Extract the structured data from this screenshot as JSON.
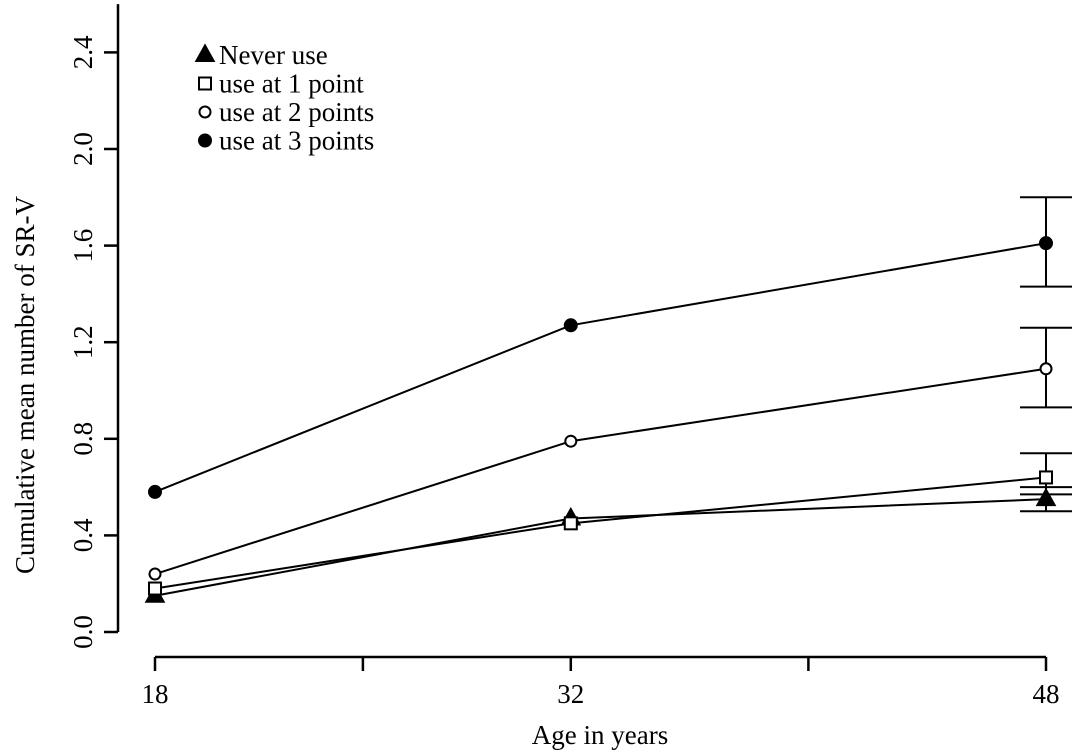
{
  "chart_data": {
    "type": "line",
    "xlabel": "Age in years",
    "ylabel": "Cumulative mean number of SR-V",
    "x": [
      18,
      32,
      48
    ],
    "x_ticks": [
      "18",
      "32",
      "48"
    ],
    "x_minor_ticks": [
      25,
      40
    ],
    "xlim": [
      18,
      48
    ],
    "ylim": [
      0.0,
      2.6
    ],
    "y_ticks": [
      "0.0",
      "0.4",
      "0.8",
      "1.2",
      "1.6",
      "2.0",
      "2.4"
    ],
    "grid": false,
    "legend_position": "top-left",
    "series": [
      {
        "name": "Never use",
        "marker": "filled-triangle",
        "values": [
          0.15,
          0.47,
          0.55
        ],
        "error_48": [
          0.5,
          0.6
        ]
      },
      {
        "name": "use at 1 point",
        "marker": "open-square",
        "values": [
          0.18,
          0.45,
          0.64
        ],
        "error_48": [
          0.57,
          0.74
        ]
      },
      {
        "name": "use at 2 points",
        "marker": "open-circle",
        "values": [
          0.24,
          0.79,
          1.09
        ],
        "error_48": [
          0.93,
          1.26
        ]
      },
      {
        "name": "use at 3 points",
        "marker": "filled-circle",
        "values": [
          0.58,
          1.27,
          1.61
        ],
        "error_48": [
          1.43,
          1.8
        ]
      }
    ]
  }
}
